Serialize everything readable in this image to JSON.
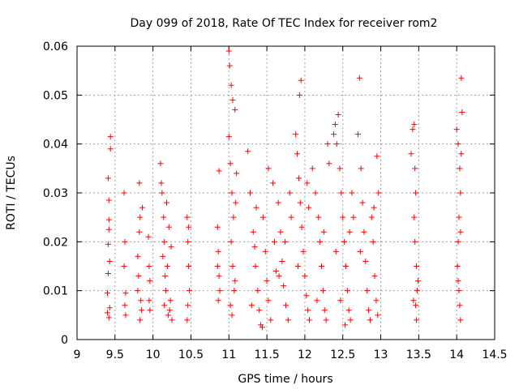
{
  "chart_data": {
    "type": "scatter",
    "title": "Day 099 of 2018, Rate Of TEC Index for receiver rom2",
    "xlabel": "GPS time / hours",
    "ylabel": "ROTI / TECUs",
    "xlim": [
      9,
      14.5
    ],
    "ylim": [
      0,
      0.06
    ],
    "x_ticks": [
      9,
      9.5,
      10,
      10.5,
      11,
      11.5,
      12,
      12.5,
      13,
      13.5,
      14,
      14.5
    ],
    "x_tick_labels": [
      "9",
      "9.5",
      "10",
      "10.5",
      "11",
      "11.5",
      "12",
      "12.5",
      "13",
      "13.5",
      "14",
      "14.5"
    ],
    "y_ticks": [
      0,
      0.01,
      0.02,
      0.03,
      0.04,
      0.05,
      0.06
    ],
    "y_tick_labels": [
      "0",
      "0.01",
      "0.02",
      "0.03",
      "0.04",
      "0.05",
      "0.06"
    ],
    "grid": true,
    "marker": "+",
    "marker_color": "#ff0000",
    "series": [
      {
        "name": "ROTI",
        "points": [
          [
            9.4,
            0.0055
          ],
          [
            9.4,
            0.0095
          ],
          [
            9.41,
            0.0135
          ],
          [
            9.41,
            0.0195
          ],
          [
            9.42,
            0.0245
          ],
          [
            9.42,
            0.0285
          ],
          [
            9.41,
            0.033
          ],
          [
            9.43,
            0.0065
          ],
          [
            9.42,
            0.0045
          ],
          [
            9.44,
            0.039
          ],
          [
            9.44,
            0.0415
          ],
          [
            9.43,
            0.016
          ],
          [
            9.42,
            0.0225
          ],
          [
            9.62,
            0.03
          ],
          [
            9.63,
            0.02
          ],
          [
            9.62,
            0.015
          ],
          [
            9.64,
            0.0095
          ],
          [
            9.63,
            0.007
          ],
          [
            9.64,
            0.005
          ],
          [
            9.8,
            0.017
          ],
          [
            9.82,
            0.022
          ],
          [
            9.83,
            0.025
          ],
          [
            9.81,
            0.013
          ],
          [
            9.84,
            0.008
          ],
          [
            9.85,
            0.006
          ],
          [
            9.82,
            0.032
          ],
          [
            9.86,
            0.027
          ],
          [
            9.8,
            0.01
          ],
          [
            9.83,
            0.004
          ],
          [
            9.94,
            0.021
          ],
          [
            9.95,
            0.015
          ],
          [
            9.96,
            0.012
          ],
          [
            9.95,
            0.008
          ],
          [
            9.96,
            0.006
          ],
          [
            10.1,
            0.036
          ],
          [
            10.12,
            0.03
          ],
          [
            10.14,
            0.025
          ],
          [
            10.15,
            0.02
          ],
          [
            10.13,
            0.017
          ],
          [
            10.16,
            0.013
          ],
          [
            10.17,
            0.01
          ],
          [
            10.15,
            0.007
          ],
          [
            10.2,
            0.005
          ],
          [
            10.22,
            0.006
          ],
          [
            10.18,
            0.028
          ],
          [
            10.21,
            0.023
          ],
          [
            10.24,
            0.019
          ],
          [
            10.19,
            0.015
          ],
          [
            10.11,
            0.032
          ],
          [
            10.23,
            0.008
          ],
          [
            10.25,
            0.004
          ],
          [
            10.45,
            0.025
          ],
          [
            10.46,
            0.02
          ],
          [
            10.47,
            0.015
          ],
          [
            10.48,
            0.01
          ],
          [
            10.46,
            0.007
          ],
          [
            10.45,
            0.004
          ],
          [
            10.47,
            0.023
          ],
          [
            10.85,
            0.023
          ],
          [
            10.86,
            0.018
          ],
          [
            10.87,
            0.013
          ],
          [
            10.88,
            0.01
          ],
          [
            10.86,
            0.008
          ],
          [
            10.85,
            0.015
          ],
          [
            10.87,
            0.0345
          ],
          [
            11.0,
            0.059
          ],
          [
            11.01,
            0.056
          ],
          [
            11.03,
            0.052
          ],
          [
            11.05,
            0.049
          ],
          [
            11.08,
            0.047
          ],
          [
            11.0,
            0.0415
          ],
          [
            11.02,
            0.036
          ],
          [
            11.04,
            0.03
          ],
          [
            11.06,
            0.025
          ],
          [
            11.03,
            0.02
          ],
          [
            11.05,
            0.015
          ],
          [
            11.07,
            0.01
          ],
          [
            11.02,
            0.007
          ],
          [
            11.04,
            0.005
          ],
          [
            11.1,
            0.034
          ],
          [
            11.09,
            0.028
          ],
          [
            11.08,
            0.012
          ],
          [
            11.25,
            0.0385
          ],
          [
            11.28,
            0.03
          ],
          [
            11.32,
            0.022
          ],
          [
            11.35,
            0.015
          ],
          [
            11.38,
            0.01
          ],
          [
            11.4,
            0.006
          ],
          [
            11.42,
            0.003
          ],
          [
            11.45,
            0.025
          ],
          [
            11.48,
            0.018
          ],
          [
            11.5,
            0.012
          ],
          [
            11.52,
            0.008
          ],
          [
            11.55,
            0.004
          ],
          [
            11.58,
            0.032
          ],
          [
            11.6,
            0.02
          ],
          [
            11.62,
            0.014
          ],
          [
            11.3,
            0.007
          ],
          [
            11.36,
            0.027
          ],
          [
            11.44,
            0.0025
          ],
          [
            11.52,
            0.035
          ],
          [
            11.34,
            0.019
          ],
          [
            11.65,
            0.028
          ],
          [
            11.68,
            0.022
          ],
          [
            11.7,
            0.016
          ],
          [
            11.72,
            0.011
          ],
          [
            11.75,
            0.007
          ],
          [
            11.78,
            0.004
          ],
          [
            11.8,
            0.03
          ],
          [
            11.82,
            0.025
          ],
          [
            11.66,
            0.013
          ],
          [
            11.74,
            0.02
          ],
          [
            11.88,
            0.042
          ],
          [
            11.9,
            0.038
          ],
          [
            11.92,
            0.033
          ],
          [
            11.94,
            0.028
          ],
          [
            11.93,
            0.05
          ],
          [
            11.95,
            0.053
          ],
          [
            11.96,
            0.023
          ],
          [
            11.98,
            0.018
          ],
          [
            12.0,
            0.013
          ],
          [
            12.02,
            0.009
          ],
          [
            12.04,
            0.006
          ],
          [
            12.06,
            0.004
          ],
          [
            12.03,
            0.032
          ],
          [
            11.91,
            0.015
          ],
          [
            12.05,
            0.027
          ],
          [
            12.1,
            0.035
          ],
          [
            12.14,
            0.03
          ],
          [
            12.18,
            0.025
          ],
          [
            12.2,
            0.02
          ],
          [
            12.22,
            0.015
          ],
          [
            12.24,
            0.01
          ],
          [
            12.26,
            0.006
          ],
          [
            12.28,
            0.004
          ],
          [
            12.3,
            0.04
          ],
          [
            12.32,
            0.036
          ],
          [
            12.16,
            0.008
          ],
          [
            12.25,
            0.022
          ],
          [
            12.38,
            0.042
          ],
          [
            12.4,
            0.044
          ],
          [
            12.42,
            0.04
          ],
          [
            12.44,
            0.046
          ],
          [
            12.46,
            0.035
          ],
          [
            12.48,
            0.03
          ],
          [
            12.5,
            0.025
          ],
          [
            12.52,
            0.02
          ],
          [
            12.54,
            0.015
          ],
          [
            12.56,
            0.01
          ],
          [
            12.58,
            0.006
          ],
          [
            12.6,
            0.004
          ],
          [
            12.62,
            0.03
          ],
          [
            12.64,
            0.025
          ],
          [
            12.41,
            0.018
          ],
          [
            12.47,
            0.008
          ],
          [
            12.53,
            0.003
          ],
          [
            12.59,
            0.022
          ],
          [
            12.72,
            0.0535
          ],
          [
            12.7,
            0.042
          ],
          [
            12.74,
            0.035
          ],
          [
            12.76,
            0.028
          ],
          [
            12.78,
            0.022
          ],
          [
            12.8,
            0.016
          ],
          [
            12.82,
            0.01
          ],
          [
            12.84,
            0.006
          ],
          [
            12.86,
            0.004
          ],
          [
            12.88,
            0.025
          ],
          [
            12.9,
            0.02
          ],
          [
            12.92,
            0.013
          ],
          [
            12.94,
            0.008
          ],
          [
            12.95,
            0.0375
          ],
          [
            12.97,
            0.03
          ],
          [
            12.96,
            0.005
          ],
          [
            12.73,
            0.018
          ],
          [
            12.91,
            0.027
          ],
          [
            13.4,
            0.038
          ],
          [
            13.42,
            0.043
          ],
          [
            13.44,
            0.044
          ],
          [
            13.45,
            0.035
          ],
          [
            13.46,
            0.03
          ],
          [
            13.44,
            0.025
          ],
          [
            13.45,
            0.02
          ],
          [
            13.47,
            0.015
          ],
          [
            13.48,
            0.01
          ],
          [
            13.46,
            0.007
          ],
          [
            13.47,
            0.004
          ],
          [
            13.49,
            0.012
          ],
          [
            13.43,
            0.008
          ],
          [
            14.0,
            0.043
          ],
          [
            14.02,
            0.04
          ],
          [
            14.04,
            0.035
          ],
          [
            14.05,
            0.03
          ],
          [
            14.03,
            0.025
          ],
          [
            14.02,
            0.02
          ],
          [
            14.01,
            0.015
          ],
          [
            14.03,
            0.01
          ],
          [
            14.04,
            0.007
          ],
          [
            14.05,
            0.004
          ],
          [
            14.06,
            0.0535
          ],
          [
            14.07,
            0.0465
          ],
          [
            14.06,
            0.038
          ],
          [
            14.02,
            0.012
          ],
          [
            14.05,
            0.022
          ]
        ]
      }
    ]
  }
}
